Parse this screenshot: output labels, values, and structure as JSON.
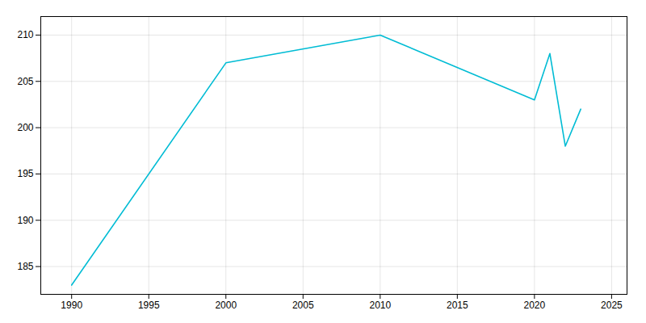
{
  "chart_data": {
    "type": "line",
    "x": [
      1990,
      2000,
      2010,
      2020,
      2021,
      2022,
      2023
    ],
    "values": [
      183,
      207,
      210,
      203,
      208,
      198,
      202
    ],
    "color": "#00BCD4",
    "xlim": [
      1988,
      2026
    ],
    "ylim": [
      182,
      212
    ],
    "xticks": [
      1990,
      1995,
      2000,
      2005,
      2010,
      2015,
      2020,
      2025
    ],
    "yticks": [
      185,
      190,
      195,
      200,
      205,
      210
    ],
    "grid": true
  }
}
